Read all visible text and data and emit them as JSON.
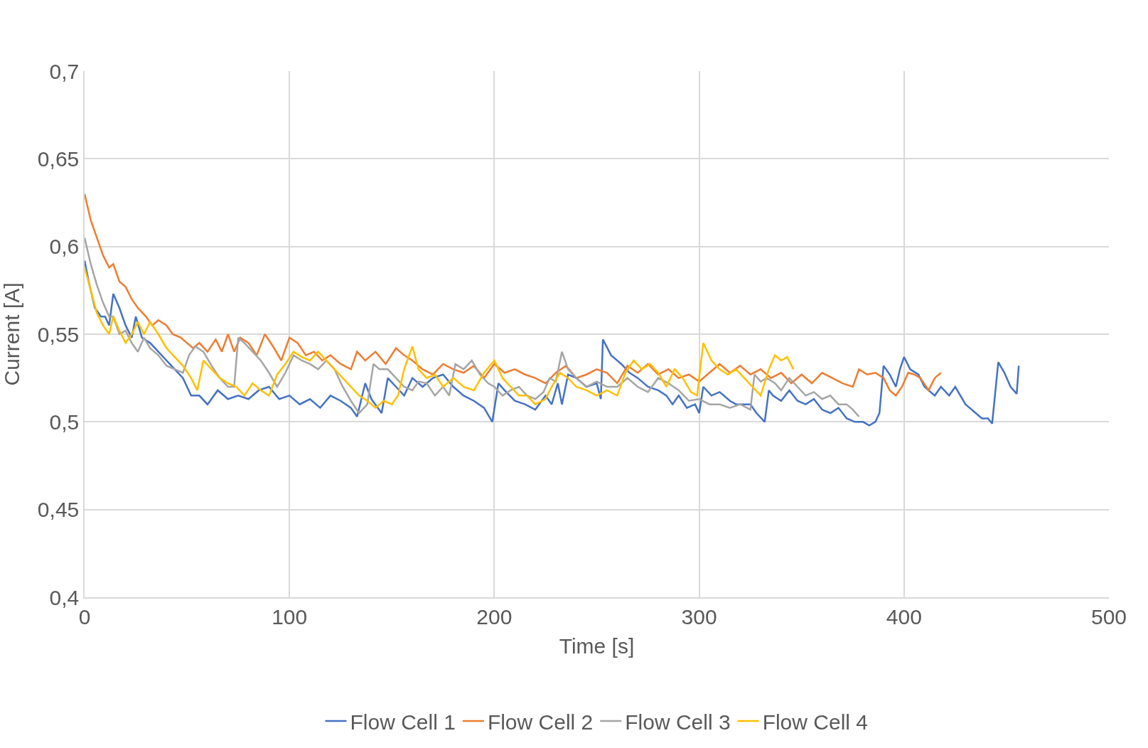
{
  "chart_data": {
    "type": "line",
    "xlabel": "Time [s]",
    "ylabel": "Current [A]",
    "xlim": [
      0,
      500
    ],
    "xticks": [
      0,
      100,
      200,
      300,
      400,
      500
    ],
    "ylim": [
      0.4,
      0.7
    ],
    "yticks": [
      {
        "value": 0.4,
        "label": "0,4"
      },
      {
        "value": 0.45,
        "label": "0,45"
      },
      {
        "value": 0.5,
        "label": "0,5"
      },
      {
        "value": 0.55,
        "label": "0,55"
      },
      {
        "value": 0.6,
        "label": "0,6"
      },
      {
        "value": 0.65,
        "label": "0,65"
      },
      {
        "value": 0.7,
        "label": "0,7"
      }
    ],
    "grid": true,
    "legend": "bottom",
    "marker": "none",
    "line_style": "solid",
    "series": [
      {
        "name": "Flow Cell 1",
        "color": "#4472c4",
        "x": [
          0,
          2,
          5,
          8,
          10,
          12,
          14,
          17,
          20,
          23,
          25,
          28,
          32,
          36,
          40,
          44,
          48,
          52,
          56,
          60,
          65,
          70,
          75,
          80,
          85,
          90,
          95,
          100,
          105,
          110,
          115,
          120,
          125,
          130,
          133,
          137,
          140,
          145,
          148,
          152,
          156,
          160,
          165,
          170,
          175,
          180,
          185,
          190,
          195,
          199,
          202,
          205,
          210,
          215,
          220,
          225,
          228,
          231,
          233,
          236,
          240,
          245,
          250,
          252,
          253,
          257,
          262,
          266,
          270,
          275,
          280,
          284,
          287,
          290,
          294,
          298,
          300,
          302,
          306,
          310,
          315,
          318,
          320,
          325,
          328,
          332,
          334,
          336,
          340,
          344,
          348,
          352,
          356,
          360,
          364,
          368,
          372,
          376,
          380,
          383,
          386,
          388,
          390,
          393,
          396,
          398,
          400,
          403,
          407,
          410,
          415,
          418,
          422,
          425,
          430,
          435,
          438,
          441,
          443,
          446,
          449,
          452,
          455,
          456
        ],
        "values": [
          0.592,
          0.58,
          0.565,
          0.56,
          0.56,
          0.555,
          0.573,
          0.565,
          0.555,
          0.548,
          0.56,
          0.548,
          0.545,
          0.54,
          0.535,
          0.53,
          0.525,
          0.515,
          0.515,
          0.51,
          0.518,
          0.513,
          0.515,
          0.513,
          0.518,
          0.52,
          0.513,
          0.515,
          0.51,
          0.513,
          0.508,
          0.515,
          0.512,
          0.508,
          0.503,
          0.522,
          0.513,
          0.505,
          0.525,
          0.52,
          0.515,
          0.525,
          0.52,
          0.525,
          0.527,
          0.52,
          0.515,
          0.512,
          0.508,
          0.5,
          0.522,
          0.518,
          0.512,
          0.51,
          0.507,
          0.515,
          0.51,
          0.522,
          0.51,
          0.527,
          0.525,
          0.52,
          0.522,
          0.513,
          0.547,
          0.538,
          0.533,
          0.528,
          0.525,
          0.52,
          0.518,
          0.515,
          0.51,
          0.515,
          0.508,
          0.51,
          0.505,
          0.52,
          0.515,
          0.517,
          0.512,
          0.51,
          0.51,
          0.51,
          0.505,
          0.5,
          0.518,
          0.515,
          0.512,
          0.518,
          0.512,
          0.51,
          0.513,
          0.507,
          0.505,
          0.508,
          0.502,
          0.5,
          0.5,
          0.498,
          0.5,
          0.505,
          0.532,
          0.527,
          0.52,
          0.53,
          0.537,
          0.53,
          0.527,
          0.52,
          0.515,
          0.52,
          0.515,
          0.52,
          0.51,
          0.505,
          0.502,
          0.502,
          0.499,
          0.534,
          0.528,
          0.52,
          0.516,
          0.532
        ]
      },
      {
        "name": "Flow Cell 2",
        "color": "#ed7d31",
        "x": [
          0,
          3,
          6,
          9,
          12,
          14,
          17,
          20,
          23,
          26,
          30,
          33,
          36,
          40,
          43,
          47,
          50,
          53,
          56,
          60,
          64,
          67,
          70,
          73,
          76,
          80,
          84,
          88,
          92,
          96,
          100,
          104,
          108,
          112,
          116,
          120,
          125,
          130,
          133,
          137,
          142,
          147,
          152,
          156,
          160,
          165,
          170,
          175,
          180,
          185,
          190,
          195,
          200,
          205,
          210,
          215,
          220,
          225,
          230,
          235,
          240,
          245,
          250,
          255,
          260,
          265,
          270,
          275,
          280,
          285,
          290,
          295,
          300,
          305,
          310,
          315,
          320,
          325,
          330,
          335,
          340,
          345,
          350,
          355,
          360,
          365,
          370,
          375,
          378,
          382,
          386,
          390,
          393,
          396,
          399,
          402,
          405,
          408,
          412,
          415,
          418
        ],
        "values": [
          0.63,
          0.615,
          0.605,
          0.595,
          0.588,
          0.59,
          0.58,
          0.577,
          0.57,
          0.565,
          0.56,
          0.555,
          0.558,
          0.555,
          0.55,
          0.548,
          0.545,
          0.542,
          0.545,
          0.54,
          0.547,
          0.54,
          0.55,
          0.54,
          0.548,
          0.545,
          0.538,
          0.55,
          0.543,
          0.535,
          0.548,
          0.545,
          0.538,
          0.54,
          0.535,
          0.538,
          0.533,
          0.53,
          0.54,
          0.535,
          0.54,
          0.533,
          0.542,
          0.538,
          0.535,
          0.53,
          0.527,
          0.533,
          0.53,
          0.528,
          0.532,
          0.525,
          0.533,
          0.528,
          0.53,
          0.527,
          0.525,
          0.522,
          0.528,
          0.532,
          0.525,
          0.527,
          0.53,
          0.528,
          0.522,
          0.532,
          0.528,
          0.533,
          0.527,
          0.53,
          0.525,
          0.527,
          0.523,
          0.528,
          0.533,
          0.528,
          0.532,
          0.527,
          0.53,
          0.525,
          0.528,
          0.522,
          0.527,
          0.522,
          0.528,
          0.525,
          0.522,
          0.52,
          0.53,
          0.527,
          0.528,
          0.525,
          0.518,
          0.515,
          0.52,
          0.528,
          0.527,
          0.525,
          0.518,
          0.525,
          0.528
        ]
      },
      {
        "name": "Flow Cell 3",
        "color": "#a5a5a5",
        "x": [
          0,
          3,
          6,
          9,
          12,
          14,
          17,
          20,
          23,
          26,
          29,
          32,
          36,
          40,
          44,
          48,
          51,
          54,
          58,
          62,
          66,
          70,
          73,
          75,
          78,
          82,
          86,
          90,
          94,
          98,
          102,
          106,
          110,
          114,
          118,
          122,
          126,
          130,
          134,
          138,
          141,
          144,
          148,
          152,
          156,
          160,
          163,
          167,
          171,
          175,
          178,
          181,
          185,
          189,
          193,
          197,
          200,
          204,
          208,
          212,
          216,
          220,
          224,
          227,
          230,
          233,
          236,
          240,
          245,
          250,
          255,
          260,
          265,
          270,
          275,
          280,
          285,
          290,
          295,
          300,
          305,
          310,
          315,
          320,
          325,
          327,
          330,
          333,
          337,
          340,
          344,
          348,
          352,
          356,
          360,
          364,
          368,
          372,
          375,
          378
        ],
        "values": [
          0.605,
          0.59,
          0.578,
          0.568,
          0.56,
          0.56,
          0.55,
          0.552,
          0.545,
          0.54,
          0.548,
          0.542,
          0.538,
          0.532,
          0.53,
          0.528,
          0.538,
          0.543,
          0.54,
          0.532,
          0.525,
          0.52,
          0.52,
          0.548,
          0.545,
          0.54,
          0.535,
          0.528,
          0.52,
          0.528,
          0.538,
          0.535,
          0.533,
          0.53,
          0.535,
          0.53,
          0.52,
          0.512,
          0.505,
          0.51,
          0.533,
          0.53,
          0.53,
          0.525,
          0.52,
          0.518,
          0.523,
          0.522,
          0.515,
          0.52,
          0.515,
          0.533,
          0.53,
          0.535,
          0.527,
          0.522,
          0.52,
          0.515,
          0.518,
          0.52,
          0.515,
          0.513,
          0.517,
          0.525,
          0.523,
          0.54,
          0.53,
          0.525,
          0.52,
          0.523,
          0.52,
          0.52,
          0.525,
          0.52,
          0.517,
          0.525,
          0.522,
          0.518,
          0.512,
          0.513,
          0.51,
          0.51,
          0.508,
          0.51,
          0.507,
          0.527,
          0.523,
          0.525,
          0.522,
          0.518,
          0.525,
          0.52,
          0.515,
          0.517,
          0.513,
          0.515,
          0.51,
          0.51,
          0.507,
          0.503
        ]
      },
      {
        "name": "Flow Cell 4",
        "color": "#ffc000",
        "x": [
          0,
          3,
          6,
          9,
          12,
          14,
          17,
          20,
          23,
          26,
          29,
          32,
          36,
          40,
          44,
          48,
          52,
          55,
          58,
          62,
          66,
          70,
          74,
          78,
          82,
          86,
          90,
          94,
          98,
          102,
          106,
          110,
          114,
          118,
          122,
          126,
          130,
          134,
          138,
          142,
          146,
          150,
          153,
          156,
          160,
          163,
          167,
          171,
          175,
          180,
          185,
          190,
          195,
          200,
          204,
          208,
          212,
          216,
          220,
          225,
          228,
          232,
          236,
          240,
          245,
          250,
          255,
          260,
          264,
          268,
          272,
          276,
          280,
          284,
          288,
          292,
          296,
          299,
          302,
          306,
          310,
          314,
          318,
          322,
          326,
          330,
          334,
          337,
          340,
          343,
          346
        ],
        "values": [
          0.588,
          0.575,
          0.562,
          0.555,
          0.55,
          0.56,
          0.552,
          0.545,
          0.55,
          0.557,
          0.55,
          0.557,
          0.55,
          0.542,
          0.537,
          0.532,
          0.525,
          0.518,
          0.535,
          0.53,
          0.525,
          0.522,
          0.52,
          0.515,
          0.522,
          0.518,
          0.515,
          0.527,
          0.533,
          0.54,
          0.537,
          0.535,
          0.54,
          0.535,
          0.53,
          0.525,
          0.52,
          0.515,
          0.512,
          0.508,
          0.512,
          0.51,
          0.515,
          0.53,
          0.543,
          0.53,
          0.525,
          0.527,
          0.52,
          0.525,
          0.52,
          0.518,
          0.528,
          0.535,
          0.525,
          0.52,
          0.515,
          0.515,
          0.51,
          0.513,
          0.52,
          0.528,
          0.525,
          0.52,
          0.518,
          0.515,
          0.518,
          0.515,
          0.528,
          0.535,
          0.53,
          0.533,
          0.528,
          0.52,
          0.53,
          0.525,
          0.517,
          0.515,
          0.545,
          0.535,
          0.53,
          0.527,
          0.53,
          0.525,
          0.52,
          0.515,
          0.53,
          0.538,
          0.535,
          0.537,
          0.53
        ]
      }
    ]
  }
}
